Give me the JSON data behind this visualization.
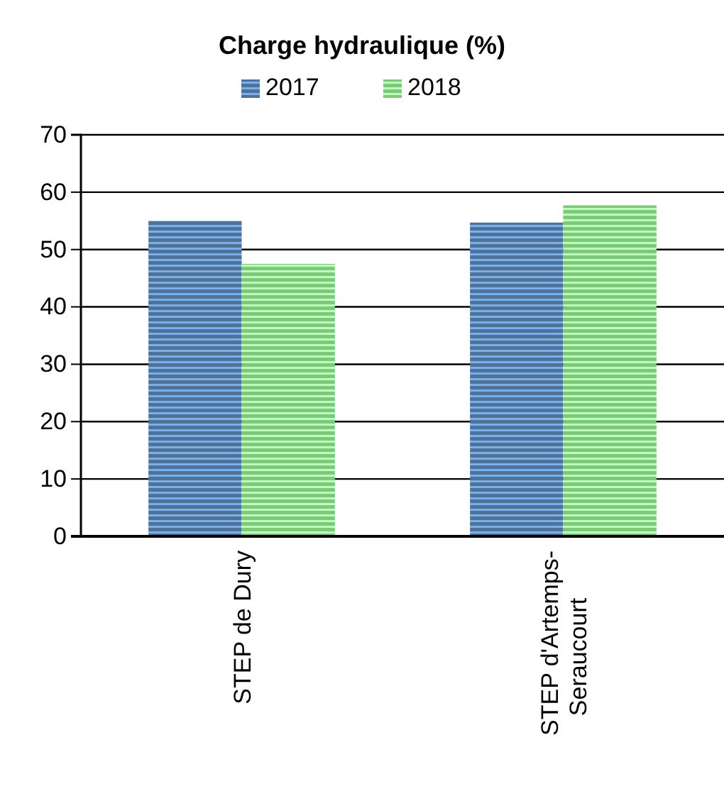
{
  "chart_data": {
    "type": "bar",
    "title": "Charge hydraulique (%)",
    "categories": [
      "STEP de Dury",
      "STEP d'Artemps-Seraucourt"
    ],
    "series": [
      {
        "name": "2017",
        "color": "#4f7299",
        "values": [
          55,
          54.7
        ]
      },
      {
        "name": "2018",
        "color": "#7cc97c",
        "values": [
          47.5,
          57.7
        ]
      }
    ],
    "ylim": [
      0,
      70
    ],
    "yticks": [
      0,
      10,
      20,
      30,
      40,
      50,
      60,
      70
    ],
    "grid": "y",
    "legend": "top"
  }
}
